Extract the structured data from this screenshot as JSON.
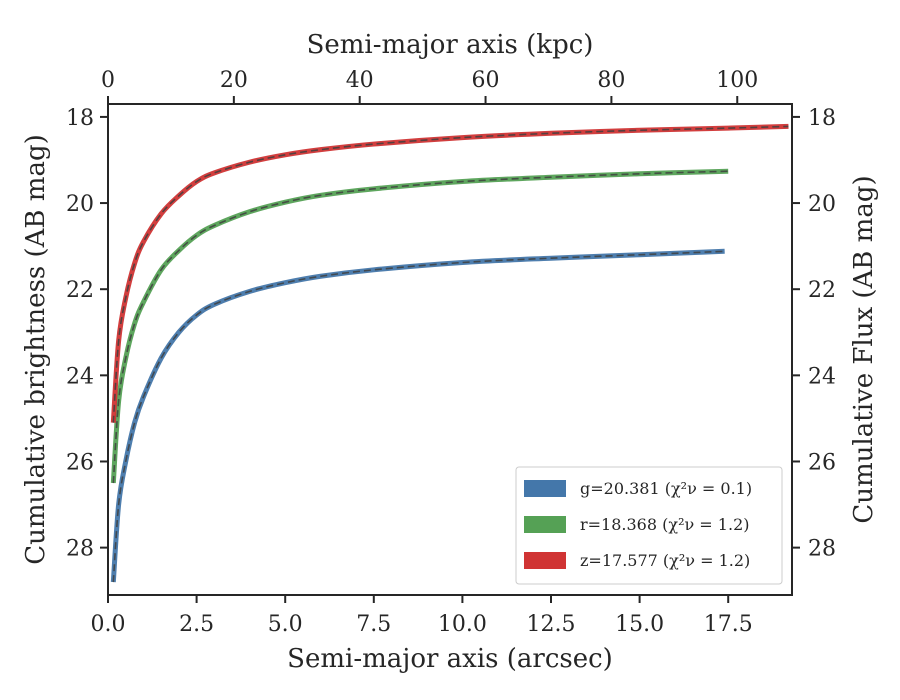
{
  "chart_data": {
    "type": "line",
    "xlabel": "Semi-major axis (arcsec)",
    "xlabel_top": "Semi-major axis (kpc)",
    "ylabel": "Cumulative brightness (AB mag)",
    "ylabel_right": "Cumulative Flux (AB mag)",
    "xlim": [
      0,
      19.3
    ],
    "ylim": [
      29.1,
      17.7
    ],
    "xlim_top": [
      0,
      108.7
    ],
    "y_inverted": true,
    "x_ticks": [
      "0.0",
      "2.5",
      "5.0",
      "7.5",
      "10.0",
      "12.5",
      "15.0",
      "17.5"
    ],
    "x_tick_values": [
      0,
      2.5,
      5,
      7.5,
      10,
      12.5,
      15,
      17.5
    ],
    "x_top_ticks": [
      "0",
      "20",
      "40",
      "60",
      "80",
      "100"
    ],
    "x_top_tick_values": [
      0,
      20,
      40,
      60,
      80,
      100
    ],
    "y_ticks": [
      "18",
      "20",
      "22",
      "24",
      "26",
      "28"
    ],
    "y_tick_values": [
      18,
      20,
      22,
      24,
      26,
      28
    ],
    "grid": false,
    "legend_position": "lower-right",
    "series": [
      {
        "name": "g=20.381",
        "chi_label": "(χ²ν = 0.1)",
        "color": "#4477aa",
        "model_color": "#404040",
        "x": [
          0.15,
          0.3,
          0.5,
          0.75,
          1.0,
          1.5,
          2.0,
          2.5,
          3.0,
          4.0,
          5.0,
          6.0,
          7.5,
          10.0,
          12.5,
          15.0,
          17.4
        ],
        "y": [
          28.8,
          27.0,
          26.0,
          25.1,
          24.5,
          23.6,
          23.0,
          22.6,
          22.35,
          22.05,
          21.85,
          21.7,
          21.55,
          21.38,
          21.28,
          21.2,
          21.12
        ]
      },
      {
        "name": "r=18.368",
        "chi_label": "(χ²ν = 1.2)",
        "color": "#55a155",
        "model_color": "#404040",
        "x": [
          0.15,
          0.3,
          0.5,
          0.75,
          1.0,
          1.5,
          2.0,
          2.5,
          3.0,
          4.0,
          5.0,
          6.0,
          7.5,
          10.0,
          12.5,
          15.0,
          17.5
        ],
        "y": [
          26.5,
          24.6,
          23.6,
          22.8,
          22.3,
          21.55,
          21.1,
          20.75,
          20.52,
          20.2,
          19.98,
          19.82,
          19.67,
          19.5,
          19.4,
          19.32,
          19.26
        ]
      },
      {
        "name": "z=17.577",
        "chi_label": "(χ²ν = 1.2)",
        "color": "#d03434",
        "model_color": "#404040",
        "x": [
          0.15,
          0.3,
          0.5,
          0.75,
          1.0,
          1.5,
          2.0,
          2.5,
          3.0,
          4.0,
          5.0,
          6.0,
          7.5,
          10.0,
          12.5,
          15.0,
          17.5,
          19.2
        ],
        "y": [
          25.1,
          23.2,
          22.2,
          21.4,
          20.9,
          20.25,
          19.83,
          19.5,
          19.3,
          19.05,
          18.88,
          18.76,
          18.63,
          18.48,
          18.38,
          18.31,
          18.26,
          18.22
        ]
      }
    ]
  }
}
